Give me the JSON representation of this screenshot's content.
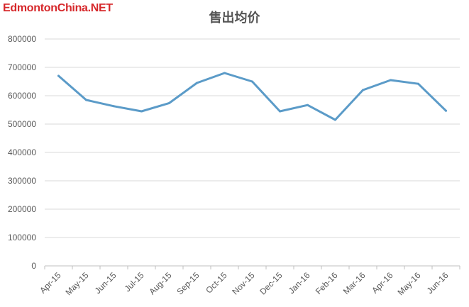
{
  "watermark": "EdmontonChina.NET",
  "chart_data": {
    "type": "line",
    "title": "售出均价",
    "xlabel": "",
    "ylabel": "",
    "categories": [
      "Apr-15",
      "May-15",
      "Jun-15",
      "Jul-15",
      "Aug-15",
      "Sep-15",
      "Oct-15",
      "Nov-15",
      "Dec-15",
      "Jan-16",
      "Feb-16",
      "Mar-16",
      "Apr-16",
      "May-16",
      "Jun-16"
    ],
    "series": [
      {
        "values": [
          670000,
          585000,
          563000,
          545000,
          574000,
          645000,
          680000,
          650000,
          545000,
          567000,
          515000,
          620000,
          655000,
          642000,
          547000
        ]
      }
    ],
    "ylim": [
      0,
      800000
    ],
    "yticks": [
      "0",
      "100000",
      "200000",
      "300000",
      "400000",
      "500000",
      "600000",
      "700000",
      "800000"
    ],
    "grid": true,
    "legend": "none",
    "line_color": "#5b9bc8"
  }
}
